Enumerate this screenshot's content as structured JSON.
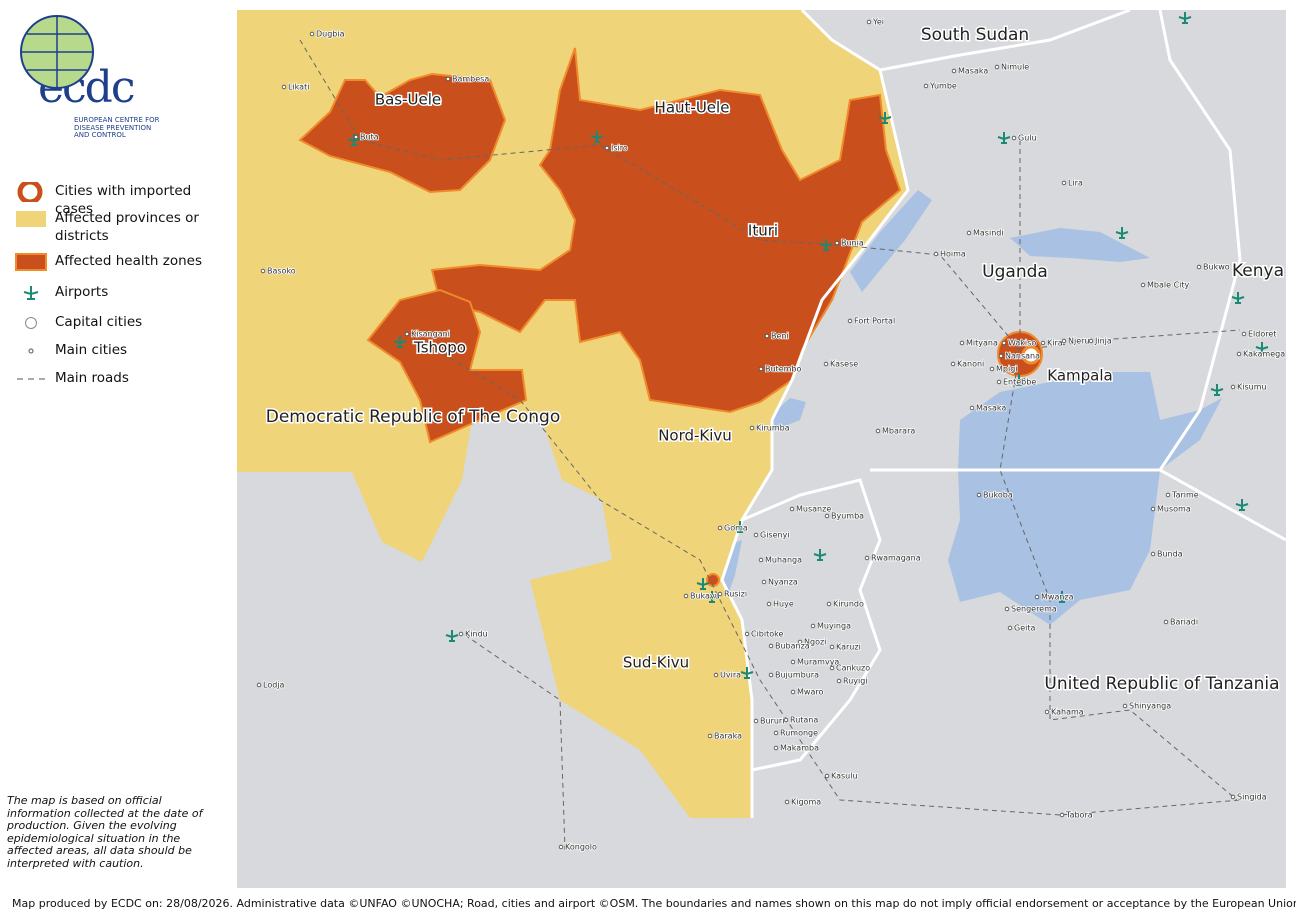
{
  "logo": {
    "wordmark": "ecdc",
    "name": "EUROPEAN CENTRE FOR DISEASE PREVENTION AND CONTROL"
  },
  "legend": [
    "Cities with imported cases",
    "Affected provinces or districts",
    "Affected health zones",
    "Airports",
    "Capital cities",
    "Main cities",
    "Main roads"
  ],
  "note": "The map is based on official information collected at the date of production. Given the evolving epidemiological situation in the affected areas, all data should be interpreted with caution.",
  "footer": "Map produced by ECDC on: 28/08/2026. Administrative data ©UNFAO  ©UNOCHA;  Road, cities and airport ©OSM. The boundaries and names shown on this map do not imply official endorsement or acceptance by the European Union.",
  "map_labels": {
    "countries": [
      "South Sudan",
      "Uganda",
      "Kenya",
      "Democratic Republic of The Congo",
      "United Republic of Tanzania"
    ],
    "provinces": [
      "Bas-Uele",
      "Haut-Uele",
      "Ituri",
      "Tshopo",
      "Nord-Kivu",
      "Sud-Kivu",
      "Kampala"
    ],
    "cities": [
      "Dugbia",
      "Yei",
      "Masaka",
      "Nimule",
      "Yumbe",
      "Gulu",
      "Lira",
      "Likati",
      "Bambesa",
      "Buta",
      "Isiro",
      "Bunia",
      "Masindi",
      "Hoima",
      "Basoko",
      "Bukwo",
      "Mbale City",
      "Fort Portal",
      "Beni",
      "Kisangani",
      "Butembo",
      "Kasese",
      "Mityana",
      "Wakiso",
      "Kira",
      "Njeru",
      "Jinja",
      "Nansana",
      "Mpigi",
      "Kanoni",
      "Entebbe",
      "Masaka",
      "Eldoret",
      "Kakamega",
      "Kisumu",
      "Mbarara",
      "Kirumba",
      "Bukoba",
      "Tarime",
      "Musoma",
      "Goma",
      "Gisenyi",
      "Musanze",
      "Byumba",
      "Rwamagana",
      "Muhanga",
      "Nyanza",
      "Bunda",
      "Bukavu",
      "Rusizi",
      "Huye",
      "Kirundo",
      "Mwanza",
      "Sengerema",
      "Geita",
      "Bariadi",
      "Kindu",
      "Cibitoke",
      "Muyinga",
      "Ngozi",
      "Bubanza",
      "Karuzi",
      "Muramvya",
      "Cankuzo",
      "Uvira",
      "Bujumbura",
      "Ruyigi",
      "Mwaro",
      "Lodja",
      "Bururi",
      "Rutana",
      "Rumonge",
      "Makamba",
      "Kahama",
      "Shinyanga",
      "Baraka",
      "Kasulu",
      "Kigoma",
      "Singida",
      "Tabora",
      "Kongolo"
    ]
  }
}
